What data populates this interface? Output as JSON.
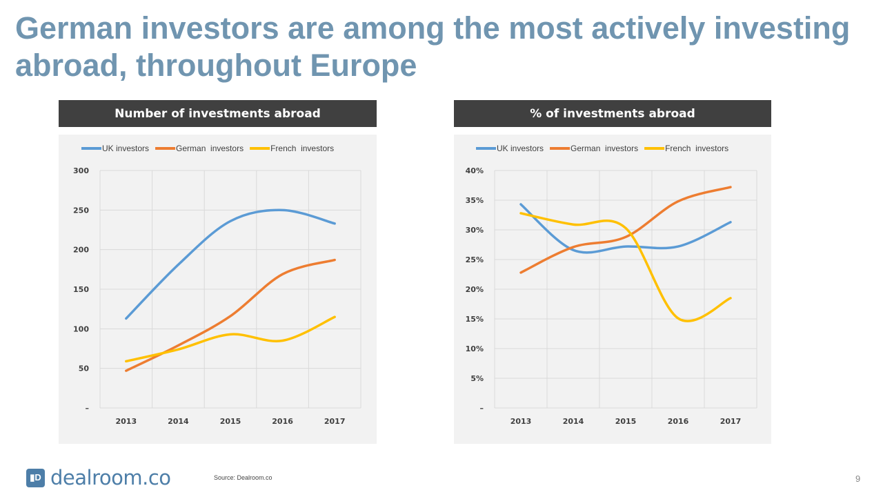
{
  "title": "German investors are among the most actively investing abroad, throughout Europe",
  "footer": {
    "logo_text": "dealroom.co",
    "source": "Source: Dealroom.co",
    "page_number": "9"
  },
  "colors": {
    "UK investors": "#5b9bd5",
    "German  investors": "#ed7d31",
    "French  investors": "#ffc000"
  },
  "chart_data": [
    {
      "type": "line",
      "title": "Number of investments abroad",
      "categories": [
        "2013",
        "2014",
        "2015",
        "2016",
        "2017"
      ],
      "ylim": [
        0,
        300
      ],
      "yticks": [
        0,
        50,
        100,
        150,
        200,
        250,
        300
      ],
      "ytick_labels": [
        "–",
        "50",
        "100",
        "150",
        "200",
        "250",
        "300"
      ],
      "grid": true,
      "legend": "top",
      "smooth": true,
      "series": [
        {
          "name": "UK investors",
          "values": [
            113,
            181,
            236,
            250,
            233
          ]
        },
        {
          "name": "German  investors",
          "values": [
            47,
            79,
            116,
            169,
            187
          ]
        },
        {
          "name": "French  investors",
          "values": [
            59,
            74,
            93,
            85,
            115
          ]
        }
      ]
    },
    {
      "type": "line",
      "title": "% of investments abroad",
      "categories": [
        "2013",
        "2014",
        "2015",
        "2016",
        "2017"
      ],
      "ylim": [
        0,
        40
      ],
      "yticks": [
        0,
        5,
        10,
        15,
        20,
        25,
        30,
        35,
        40
      ],
      "ytick_labels": [
        "–",
        "5%",
        "10%",
        "15%",
        "20%",
        "25%",
        "30%",
        "35%",
        "40%"
      ],
      "grid": true,
      "legend": "top",
      "smooth": true,
      "series": [
        {
          "name": "UK investors",
          "values": [
            34.3,
            26.6,
            27.2,
            27.2,
            31.3
          ]
        },
        {
          "name": "German  investors",
          "values": [
            22.8,
            27.1,
            28.8,
            34.8,
            37.2
          ]
        },
        {
          "name": "French  investors",
          "values": [
            32.8,
            30.9,
            30.3,
            15.1,
            18.5
          ]
        }
      ]
    }
  ]
}
